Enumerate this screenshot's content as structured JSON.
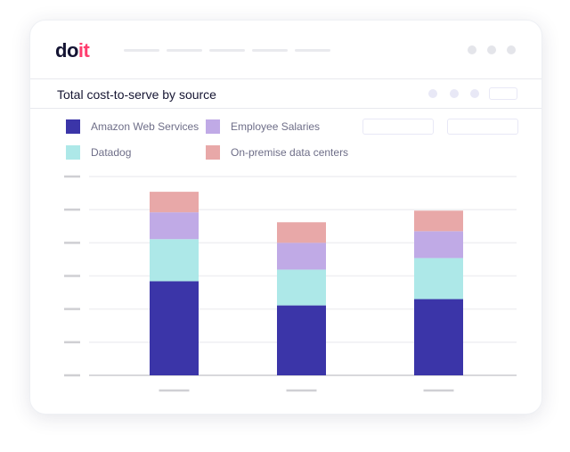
{
  "logo": {
    "part1": "do",
    "part2": "it"
  },
  "panel": {
    "title": "Total cost-to-serve by source"
  },
  "colors": {
    "aws": "#3b35a8",
    "datadog": "#ade8e8",
    "salaries": "#c0aae6",
    "onprem": "#e8a8a8",
    "brand": "#ff3d6e"
  },
  "chart_data": {
    "type": "bar",
    "stacked": true,
    "title": "Total cost-to-serve by source",
    "categories": [
      "",
      "",
      ""
    ],
    "ylim": [
      0,
      6
    ],
    "grid": true,
    "legend": "top-left",
    "series": [
      {
        "name": "Amazon Web Services",
        "values": [
          2.84,
          2.11,
          2.3
        ]
      },
      {
        "name": "Datadog",
        "values": [
          1.27,
          1.08,
          1.24
        ]
      },
      {
        "name": "Employee Salaries",
        "values": [
          0.81,
          0.81,
          0.81
        ]
      },
      {
        "name": "On-premise data centers",
        "values": [
          0.62,
          0.62,
          0.62
        ]
      }
    ]
  }
}
